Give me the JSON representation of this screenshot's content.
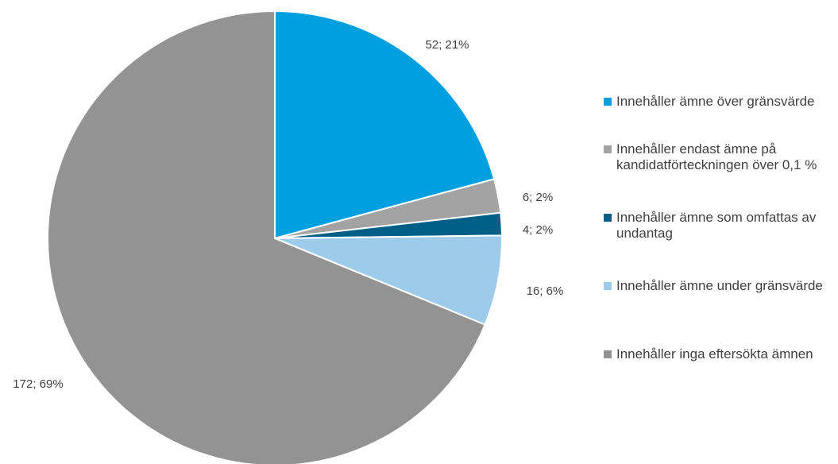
{
  "chart_data": {
    "type": "pie",
    "categories": [
      "Innehåller ämne över gränsvärde",
      "Innehåller endast ämne på kandidatförteckningen över 0,1 %",
      "Innehåller ämne som omfattas av undantag",
      "Innehåller ämne under gränsvärde",
      "Innehåller inga eftersökta ämnen"
    ],
    "values": [
      52,
      6,
      4,
      16,
      172
    ],
    "data_labels": [
      "52; 21%",
      "6; 2%",
      "4; 2%",
      "16; 6%",
      "172; 69%"
    ],
    "colors": [
      "#00a0e0",
      "#a3a3a3",
      "#005f87",
      "#9dcbea",
      "#939393"
    ],
    "legend_position": "right",
    "start_angle": "top, clockwise"
  }
}
